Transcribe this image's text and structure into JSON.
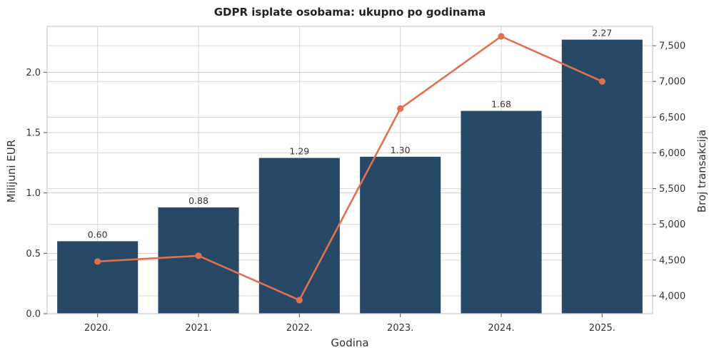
{
  "chart_data": {
    "type": "bar",
    "title": "GDPR isplate osobama: ukupno po godinama",
    "xlabel": "Godina",
    "ylabel": "Milijuni EUR",
    "y2label": "Broj transakcija",
    "categories": [
      "2020.",
      "2021.",
      "2022.",
      "2023.",
      "2024.",
      "2025."
    ],
    "series": [
      {
        "name": "Milijuni EUR",
        "kind": "bar",
        "axis": "left",
        "values": [
          0.6,
          0.88,
          1.29,
          1.3,
          1.68,
          2.27
        ],
        "labels": [
          "0.60",
          "0.88",
          "1.29",
          "1.30",
          "1.68",
          "2.27"
        ],
        "color": "#1b3f5e"
      },
      {
        "name": "Broj transakcija",
        "kind": "line",
        "axis": "right",
        "values": [
          4480,
          4560,
          3940,
          6620,
          7630,
          7000
        ],
        "color": "#e07050"
      }
    ],
    "ylim": [
      0,
      2.38
    ],
    "y2lim": [
      3750,
      7770
    ],
    "yticks": [
      0.0,
      0.5,
      1.0,
      1.5,
      2.0
    ],
    "ytick_labels": [
      "0.0",
      "0.5",
      "1.0",
      "1.5",
      "2.0"
    ],
    "y2ticks": [
      4000,
      4500,
      5000,
      5500,
      6000,
      6500,
      7000,
      7500
    ],
    "y2tick_labels": [
      "4,000",
      "4,500",
      "5,000",
      "5,500",
      "6,000",
      "6,500",
      "7,000",
      "7,500"
    ],
    "grid": true,
    "legend": "none"
  }
}
